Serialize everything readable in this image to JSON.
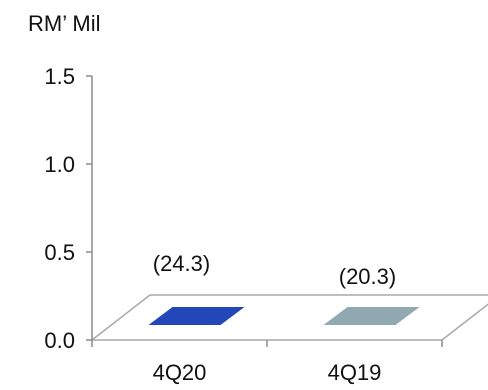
{
  "chart_data": {
    "type": "bar",
    "unit_label": "RM’ Mil",
    "categories": [
      "4Q20",
      "4Q19"
    ],
    "values": [
      -24.3,
      -20.3
    ],
    "data_labels": [
      "(24.3)",
      "(20.3)"
    ],
    "yticks": [
      "0.0",
      "0.5",
      "1.0",
      "1.5"
    ],
    "ylim": [
      0,
      1.5
    ],
    "grid": false,
    "legend": "none",
    "colors": [
      "#2346b8",
      "#91a9b0"
    ],
    "floor_color": "#ffffff",
    "floor_stroke": "#a8a8a8",
    "axis_color": "#8c8c8c"
  }
}
